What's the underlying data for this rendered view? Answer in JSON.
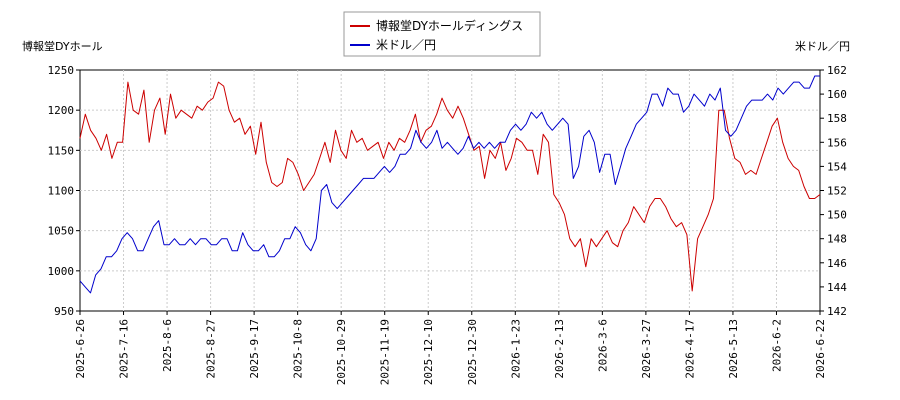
{
  "chart_data": {
    "type": "line",
    "title": "",
    "legend": {
      "placement": "top-center",
      "entries": [
        "博報堂DYホールディングス",
        "米ドル／円"
      ]
    },
    "y_left": {
      "label": "博報堂DYホール",
      "range": [
        950,
        1250
      ],
      "ticks": [
        "950",
        "1000",
        "1050",
        "1100",
        "1150",
        "1200",
        "1250"
      ]
    },
    "y_right": {
      "label": "米ドル／円",
      "range": [
        142,
        162
      ],
      "ticks": [
        "142",
        "144",
        "146",
        "148",
        "150",
        "152",
        "154",
        "156",
        "158",
        "160",
        "162"
      ]
    },
    "x_ticks": [
      "2025-6-26",
      "2025-7-16",
      "2025-8-6",
      "2025-8-27",
      "2025-9-17",
      "2025-10-8",
      "2025-10-29",
      "2025-11-19",
      "2025-12-10",
      "2025-12-30",
      "2026-1-23",
      "2026-2-13",
      "2026-3-6",
      "2026-3-27",
      "2026-4-17",
      "2026-5-13",
      "2026-6-2",
      "2026-6-22"
    ],
    "grid": true,
    "series": [
      {
        "name": "博報堂DYホールディングス",
        "axis": "left",
        "color": "#cc0000",
        "values": [
          1165,
          1195,
          1175,
          1165,
          1150,
          1170,
          1140,
          1160,
          1160,
          1235,
          1200,
          1195,
          1225,
          1160,
          1200,
          1215,
          1170,
          1220,
          1190,
          1200,
          1195,
          1190,
          1205,
          1200,
          1210,
          1215,
          1235,
          1230,
          1200,
          1185,
          1190,
          1170,
          1180,
          1145,
          1185,
          1135,
          1110,
          1105,
          1110,
          1140,
          1135,
          1120,
          1100,
          1110,
          1120,
          1140,
          1160,
          1135,
          1175,
          1150,
          1140,
          1175,
          1160,
          1165,
          1150,
          1155,
          1160,
          1140,
          1160,
          1150,
          1165,
          1160,
          1175,
          1195,
          1160,
          1175,
          1180,
          1195,
          1215,
          1200,
          1190,
          1205,
          1190,
          1170,
          1150,
          1155,
          1115,
          1150,
          1140,
          1160,
          1125,
          1140,
          1165,
          1160,
          1150,
          1150,
          1120,
          1170,
          1160,
          1095,
          1085,
          1070,
          1040,
          1030,
          1040,
          1005,
          1040,
          1030,
          1040,
          1050,
          1035,
          1030,
          1050,
          1060,
          1080,
          1070,
          1060,
          1080,
          1090,
          1090,
          1080,
          1065,
          1055,
          1060,
          1045,
          975,
          1040,
          1055,
          1070,
          1090,
          1200,
          1200,
          1165,
          1140,
          1135,
          1120,
          1125,
          1120,
          1140,
          1160,
          1180,
          1190,
          1160,
          1140,
          1130,
          1125,
          1105,
          1090,
          1090,
          1095
        ]
      },
      {
        "name": "米ドル／円",
        "axis": "right",
        "color": "#0000cc",
        "values": [
          144.5,
          144,
          143.5,
          145,
          145.5,
          146.5,
          146.5,
          147,
          148,
          148.5,
          148,
          147,
          147,
          148,
          149,
          149.5,
          147.5,
          147.5,
          148,
          147.5,
          147.5,
          148,
          147.5,
          148,
          148,
          147.5,
          147.5,
          148,
          148,
          147,
          147,
          148.5,
          147.5,
          147,
          147,
          147.5,
          146.5,
          146.5,
          147,
          148,
          148,
          149,
          148.5,
          147.5,
          147,
          148,
          152,
          152.5,
          151,
          150.5,
          151,
          151.5,
          152,
          152.5,
          153,
          153,
          153,
          153.5,
          154,
          153.5,
          154,
          155,
          155,
          155.5,
          157,
          156,
          155.5,
          156,
          157,
          155.5,
          156,
          155.5,
          155,
          155.5,
          156.5,
          155.5,
          156,
          155.5,
          156,
          155.5,
          156,
          156,
          157,
          157.5,
          157,
          157.5,
          158.5,
          158,
          158.5,
          157.5,
          157,
          157.5,
          158,
          157.5,
          153,
          154,
          156.5,
          157,
          156,
          153.5,
          155,
          155,
          152.5,
          154,
          155.5,
          156.5,
          157.5,
          158,
          158.5,
          160,
          160,
          159,
          160.5,
          160,
          160,
          158.5,
          159,
          160,
          159.5,
          159,
          160,
          159.5,
          160.5,
          157,
          156.5,
          157,
          158,
          159,
          159.5,
          159.5,
          159.5,
          160,
          159.5,
          160.5,
          160,
          160.5,
          161,
          161,
          160.5,
          160.5,
          161.5,
          161.5
        ]
      }
    ]
  }
}
